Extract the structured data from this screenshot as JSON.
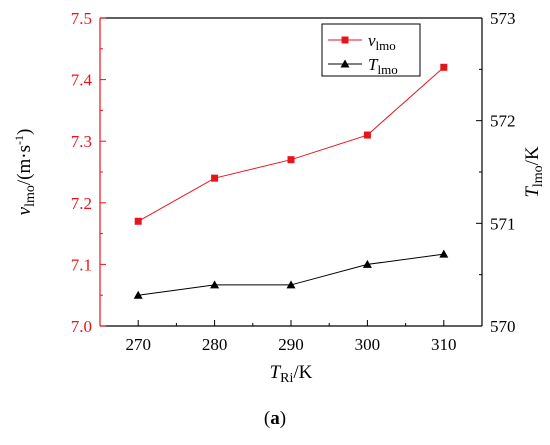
{
  "chart_data": {
    "type": "line",
    "x": [
      270,
      280,
      290,
      300,
      310
    ],
    "xlim": [
      265,
      315
    ],
    "xticks": [
      "270",
      "280",
      "290",
      "300",
      "310"
    ],
    "xlabel": {
      "italic": "T",
      "sub": "Ri",
      "rest": "/K"
    },
    "series": [
      {
        "name_italic": "v",
        "name_sub": "lmo",
        "color": "#e8141c",
        "marker": "square",
        "axis": "left",
        "values": [
          7.17,
          7.24,
          7.27,
          7.31,
          7.42
        ]
      },
      {
        "name_italic": "T",
        "name_sub": "lmo",
        "color": "#000000",
        "marker": "triangle",
        "axis": "right",
        "values": [
          570.3,
          570.4,
          570.4,
          570.6,
          570.7
        ]
      }
    ],
    "y_left": {
      "lim": [
        7.0,
        7.5
      ],
      "ticks": [
        "7.0",
        "7.1",
        "7.2",
        "7.3",
        "7.4",
        "7.5"
      ],
      "color": "#e8141c",
      "label": {
        "italic": "v",
        "sub": "lmo",
        "rest": "/(m·s",
        "sup": "-1",
        "end": ")"
      }
    },
    "y_right": {
      "lim": [
        570,
        573
      ],
      "ticks": [
        "570",
        "571",
        "572",
        "573"
      ],
      "color": "#000000",
      "label": {
        "italic": "T",
        "sub": "lmo",
        "rest": "/K"
      }
    },
    "legend_position": "top-right",
    "grid": false
  },
  "caption": {
    "open": "(",
    "letter": "a",
    "close": ")"
  }
}
